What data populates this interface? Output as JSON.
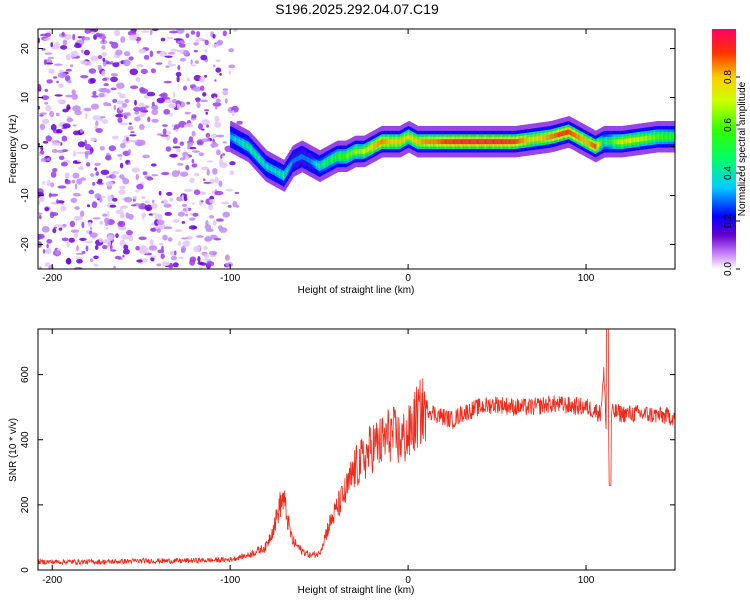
{
  "chart_data": [
    {
      "type": "heatmap",
      "title": "S196.2025.292.04.07.C19",
      "xlabel": "Height of straight line (km)",
      "ylabel": "Frequency (Hz)",
      "xlim": [
        -208,
        150
      ],
      "ylim": [
        -25,
        24
      ],
      "xticks": [
        -200,
        -100,
        0,
        100
      ],
      "yticks": [
        -20,
        -10,
        0,
        10,
        20
      ],
      "colorbar": {
        "label": "Normalized spectral amplitude",
        "range": [
          0,
          1
        ],
        "ticks": [
          "0.0",
          "0.2",
          "0.4",
          "0.6",
          "0.8"
        ]
      },
      "ridge": {
        "x": [
          -100,
          -95,
          -90,
          -85,
          -80,
          -75,
          -70,
          -65,
          -60,
          -55,
          -50,
          -45,
          -40,
          -35,
          -30,
          -25,
          -20,
          -15,
          -10,
          -5,
          0,
          5,
          10,
          15,
          20,
          30,
          40,
          50,
          60,
          70,
          80,
          85,
          90,
          95,
          100,
          105,
          110,
          115,
          120,
          130,
          140,
          150
        ],
        "y": [
          2,
          1,
          0,
          -2,
          -4,
          -5,
          -6,
          -3,
          -2,
          -3,
          -4,
          -3,
          -2,
          -2,
          -1,
          -1,
          0,
          1,
          1,
          1,
          2,
          1,
          1,
          1,
          1,
          1,
          1,
          1,
          1,
          1.5,
          2,
          2.5,
          3,
          2,
          1,
          0,
          1,
          1,
          1,
          1.5,
          2,
          2
        ],
        "amplitude": [
          0.35,
          0.4,
          0.45,
          0.45,
          0.4,
          0.4,
          0.45,
          0.3,
          0.3,
          0.3,
          0.45,
          0.5,
          0.55,
          0.6,
          0.65,
          0.7,
          0.8,
          0.85,
          0.8,
          0.8,
          0.75,
          0.8,
          0.85,
          0.85,
          0.9,
          0.95,
          0.95,
          0.95,
          0.9,
          0.75,
          0.85,
          0.9,
          0.9,
          0.85,
          0.8,
          0.9,
          0.45,
          0.6,
          0.75,
          0.7,
          0.6,
          0.55
        ]
      }
    },
    {
      "type": "line",
      "xlabel": "Height of straight line (km)",
      "ylabel": "SNR (10 * v/v)",
      "xlim": [
        -208,
        150
      ],
      "ylim": [
        0,
        740
      ],
      "xticks": [
        -200,
        -100,
        0,
        100
      ],
      "yticks": [
        0,
        200,
        400,
        600
      ],
      "color": "#ee2a1b",
      "series": [
        {
          "name": "SNR",
          "x": [
            -208,
            -190,
            -170,
            -150,
            -130,
            -110,
            -100,
            -90,
            -80,
            -75,
            -72,
            -70,
            -68,
            -65,
            -60,
            -55,
            -50,
            -45,
            -40,
            -35,
            -30,
            -25,
            -20,
            -15,
            -10,
            -5,
            0,
            5,
            10,
            15,
            20,
            25,
            30,
            40,
            50,
            60,
            70,
            80,
            90,
            100,
            105,
            108,
            110,
            112,
            114,
            116,
            120,
            130,
            140,
            150
          ],
          "y": [
            25,
            25,
            25,
            28,
            28,
            30,
            32,
            45,
            70,
            140,
            200,
            220,
            160,
            90,
            60,
            45,
            50,
            130,
            190,
            240,
            310,
            340,
            380,
            390,
            420,
            400,
            410,
            470,
            500,
            480,
            470,
            460,
            480,
            500,
            510,
            500,
            500,
            510,
            505,
            500,
            490,
            480,
            600,
            360,
            480,
            485,
            480,
            480,
            475,
            470
          ]
        }
      ]
    }
  ]
}
